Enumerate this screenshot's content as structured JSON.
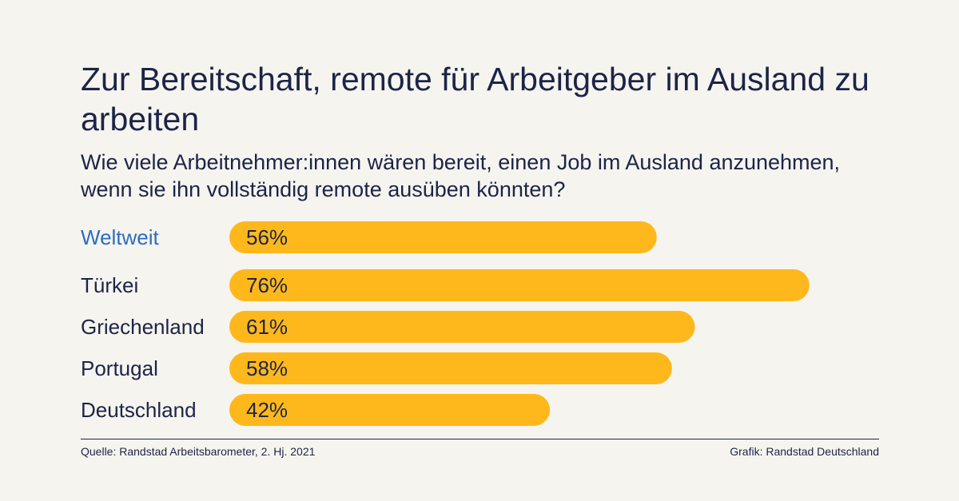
{
  "title": "Zur Bereitschaft, remote für Arbeitgeber im Ausland zu arbeiten",
  "subtitle": "Wie viele Arbeitnehmer:innen wären bereit, einen Job im Ausland anzunehmen, wenn sie ihn vollständig remote ausüben könnten?",
  "chart_data": {
    "type": "bar",
    "orientation": "horizontal",
    "categories": [
      "Weltweit",
      "Türkei",
      "Griechenland",
      "Portugal",
      "Deutschland"
    ],
    "values": [
      56,
      76,
      61,
      58,
      42
    ],
    "value_labels": [
      "56%",
      "76%",
      "61%",
      "58%",
      "42%"
    ],
    "unit": "%",
    "highlight_category": "Weltweit",
    "xlim": [
      0,
      100
    ],
    "grid": false,
    "bar_color": "#ffb81c",
    "highlight_label_color": "#2d6cc0",
    "label_color": "#1c2447"
  },
  "footer": {
    "source": "Quelle: Randstad Arbeitsbarometer, 2. Hj. 2021",
    "credit": "Grafik: Randstad Deutschland"
  }
}
